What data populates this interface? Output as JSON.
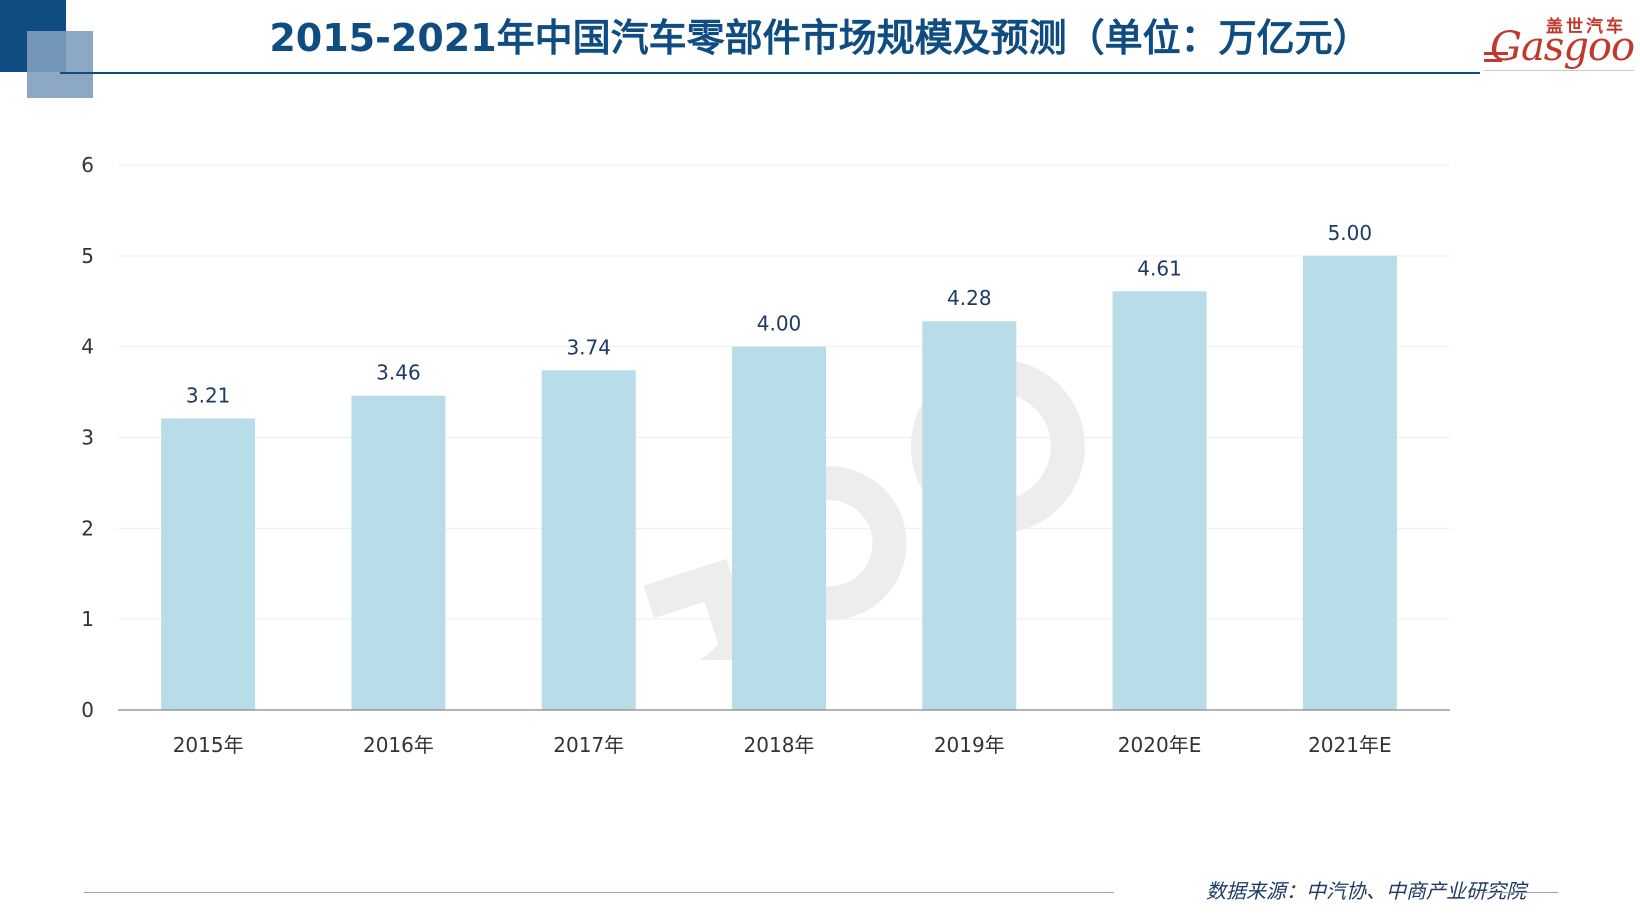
{
  "header": {
    "title": "2015-2021年中国汽车零部件市场规模及预测（单位：万亿元）",
    "brand_color": "#0f4c81",
    "accent_light": "#7f9fbf"
  },
  "logo": {
    "name_cn": "盖世汽车",
    "name_en": "Gasgoo",
    "color": "#c0392b",
    "icon": "gasgoo-logo"
  },
  "watermark": {
    "icon": "gasgoo-watermark-logo"
  },
  "chart_data": {
    "type": "bar",
    "title": "2015-2021年中国汽车零部件市场规模及预测（单位：万亿元）",
    "categories": [
      "2015年",
      "2016年",
      "2017年",
      "2018年",
      "2019年",
      "2020年E",
      "2021年E"
    ],
    "values": [
      3.21,
      3.46,
      3.74,
      4.0,
      4.28,
      4.61,
      5.0
    ],
    "value_labels": [
      "3.21",
      "3.46",
      "3.74",
      "4.00",
      "4.28",
      "4.61",
      "5.00"
    ],
    "xlabel": "",
    "ylabel": "",
    "ylim": [
      0,
      6
    ],
    "yticks": [
      "0",
      "1",
      "2",
      "3",
      "4",
      "5",
      "6"
    ],
    "grid": true,
    "legend": "none",
    "bar_color": "#b9dde8",
    "label_color": "#1f3b63",
    "axis_text_color": "#333333"
  },
  "footer": {
    "source": "数据来源：中汽协、中商产业研究院"
  }
}
